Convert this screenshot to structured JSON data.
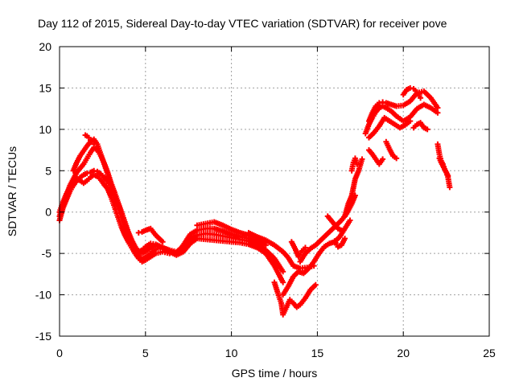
{
  "chart_data": {
    "type": "scatter",
    "title": "Day 112 of 2015, Sidereal Day-to-day VTEC variation (SDTVAR) for receiver pove",
    "xlabel": "GPS time / hours",
    "ylabel": "SDTVAR / TECUs",
    "xlim": [
      0,
      25
    ],
    "ylim": [
      -15,
      20
    ],
    "xticks": [
      0,
      5,
      10,
      15,
      20,
      25
    ],
    "yticks": [
      -15,
      -10,
      -5,
      0,
      5,
      10,
      15,
      20
    ],
    "grid": true,
    "marker": "plus",
    "color": "#ff0000",
    "series": [
      {
        "x": [
          0.0,
          0.2,
          0.4,
          0.6,
          0.8,
          1.0,
          1.2,
          1.4,
          1.6,
          1.8,
          2.0,
          2.2,
          2.4,
          2.6,
          2.8,
          3.0,
          3.2,
          3.4,
          3.6,
          3.8,
          4.0,
          4.2,
          4.4,
          4.6,
          4.8,
          5.0,
          5.3,
          5.6,
          6.0,
          6.4,
          6.8,
          7.2,
          7.6,
          8.0,
          8.5,
          9.0,
          9.5,
          10.0,
          10.5,
          11.0,
          11.5,
          12.0,
          12.5,
          13.0
        ],
        "y": [
          -1.0,
          0.5,
          1.5,
          2.5,
          3.2,
          3.8,
          4.2,
          4.5,
          4.7,
          4.8,
          5.0,
          4.9,
          4.6,
          4.2,
          3.7,
          3.0,
          2.0,
          1.0,
          0.0,
          -1.2,
          -2.4,
          -3.4,
          -4.2,
          -4.8,
          -5.0,
          -4.8,
          -4.3,
          -4.0,
          -4.3,
          -4.8,
          -5.2,
          -4.8,
          -3.8,
          -3.2,
          -3.3,
          -3.4,
          -3.5,
          -3.6,
          -3.7,
          -3.9,
          -4.3,
          -5.0,
          -6.5,
          -8.5
        ]
      },
      {
        "x": [
          0.0,
          0.2,
          0.4,
          0.6,
          0.8,
          1.0,
          1.2,
          1.4,
          1.6,
          1.8,
          2.0,
          2.2,
          2.4,
          2.6,
          2.8,
          3.0,
          3.2,
          3.4,
          3.6,
          3.8,
          4.0,
          4.2,
          4.4,
          4.6,
          4.8,
          5.0,
          5.3,
          5.6,
          6.0,
          6.4,
          6.8,
          7.2,
          7.6,
          8.0,
          8.5,
          9.0,
          9.5,
          10.0,
          10.5,
          11.0,
          11.5,
          12.0,
          12.5,
          13.0
        ],
        "y": [
          -0.5,
          0.8,
          2.0,
          3.2,
          4.0,
          4.8,
          5.3,
          5.8,
          6.5,
          7.2,
          7.8,
          7.5,
          6.8,
          5.9,
          4.8,
          3.5,
          2.4,
          1.2,
          0.0,
          -1.4,
          -2.6,
          -3.5,
          -4.3,
          -4.8,
          -4.6,
          -4.2,
          -3.8,
          -3.9,
          -4.3,
          -4.6,
          -4.8,
          -4.2,
          -3.3,
          -2.8,
          -2.6,
          -2.7,
          -2.9,
          -3.1,
          -3.3,
          -3.5,
          -3.9,
          -4.6,
          -5.6,
          -7.2
        ]
      },
      {
        "x": [
          0.0,
          0.2,
          0.4,
          0.6,
          0.8,
          1.0,
          1.2,
          1.4,
          1.6,
          1.8,
          2.0,
          2.2,
          2.4,
          2.6,
          2.8,
          3.0,
          3.2,
          3.4,
          3.6,
          3.8,
          4.0,
          4.2,
          4.4,
          4.6,
          4.8,
          5.0,
          5.3,
          5.6,
          6.0,
          6.4,
          6.8,
          7.2,
          7.6,
          8.0,
          8.5,
          9.0,
          9.5,
          10.0,
          10.5,
          11.0,
          11.5,
          12.0
        ],
        "y": [
          0.0,
          1.2,
          2.2,
          3.0,
          3.6,
          4.0,
          3.8,
          3.5,
          3.8,
          4.2,
          4.5,
          4.3,
          3.9,
          3.3,
          2.8,
          1.8,
          0.6,
          -0.6,
          -1.8,
          -2.8,
          -3.6,
          -4.3,
          -5.0,
          -5.4,
          -5.7,
          -5.5,
          -5.0,
          -4.5,
          -4.3,
          -4.7,
          -5.0,
          -4.0,
          -2.7,
          -2.2,
          -2.0,
          -2.0,
          -2.3,
          -2.7,
          -3.0,
          -3.2,
          -3.5,
          -4.0
        ]
      },
      {
        "x": [
          0.8,
          1.0,
          1.2,
          1.4,
          1.6,
          1.8,
          2.0,
          2.2,
          2.4,
          2.6,
          2.8,
          3.0,
          3.2,
          3.4,
          3.6,
          3.8,
          4.0,
          4.2,
          4.4,
          4.6,
          4.8,
          5.0,
          5.3,
          5.6,
          6.0,
          6.4
        ],
        "y": [
          5.0,
          6.0,
          6.8,
          7.4,
          8.0,
          8.5,
          8.8,
          8.2,
          7.0,
          5.8,
          4.6,
          3.2,
          2.0,
          0.8,
          -0.6,
          -1.8,
          -3.0,
          -4.0,
          -5.0,
          -5.6,
          -6.0,
          -5.8,
          -5.4,
          -5.0,
          -4.8,
          -5.0
        ]
      },
      {
        "x": [
          1.5,
          1.6,
          1.7,
          1.8,
          1.9,
          2.0
        ],
        "y": [
          9.3,
          9.2,
          9.0,
          8.7,
          8.5,
          8.2
        ]
      },
      {
        "x": [
          4.6,
          4.8,
          5.0,
          5.3,
          5.6,
          6.0
        ],
        "y": [
          -2.5,
          -2.4,
          -2.2,
          -2.0,
          -2.8,
          -3.6
        ]
      },
      {
        "x": [
          8.0,
          8.5,
          9.0,
          9.5,
          10.0,
          10.5,
          11.0,
          11.5,
          12.0
        ],
        "y": [
          -1.6,
          -1.4,
          -1.2,
          -1.6,
          -2.1,
          -2.5,
          -2.8,
          -3.1,
          -3.6
        ]
      },
      {
        "x": [
          11.0,
          11.5,
          12.0,
          12.5,
          13.0,
          13.3,
          13.6,
          14.0,
          14.4,
          14.8
        ],
        "y": [
          -2.5,
          -3.0,
          -3.4,
          -4.0,
          -4.8,
          -5.5,
          -6.5,
          -6.8,
          -6.7,
          -6.5
        ]
      },
      {
        "x": [
          12.5,
          12.7,
          12.9,
          13.0,
          13.2,
          13.4,
          13.6,
          13.8,
          14.0,
          14.3,
          14.6,
          14.9
        ],
        "y": [
          -8.5,
          -9.8,
          -11.0,
          -12.4,
          -11.5,
          -10.6,
          -11.0,
          -11.5,
          -11.2,
          -10.4,
          -9.4,
          -8.8
        ]
      },
      {
        "x": [
          13.0,
          13.3,
          13.6,
          13.9,
          14.2,
          14.5,
          14.8,
          15.1,
          15.4,
          15.7,
          16.0,
          16.3,
          16.6,
          16.9
        ],
        "y": [
          -10.0,
          -9.0,
          -7.8,
          -7.2,
          -7.4,
          -6.8,
          -6.0,
          -5.0,
          -4.2,
          -3.8,
          -3.6,
          -3.0,
          -2.0,
          -1.0
        ]
      },
      {
        "x": [
          13.5,
          13.7,
          13.9,
          14.1,
          14.3
        ],
        "y": [
          -3.6,
          -4.4,
          -5.4,
          -4.7,
          -4.3
        ]
      },
      {
        "x": [
          14.0,
          14.3,
          14.6,
          14.9,
          15.2,
          15.5,
          15.8,
          16.1,
          16.4,
          16.7,
          17.0,
          17.2
        ],
        "y": [
          -6.0,
          -5.0,
          -4.4,
          -4.0,
          -3.4,
          -2.8,
          -2.2,
          -1.6,
          -1.0,
          -0.2,
          1.0,
          2.0
        ]
      },
      {
        "x": [
          15.6,
          15.8,
          16.0,
          16.2,
          16.4
        ],
        "y": [
          -0.5,
          -1.0,
          -1.5,
          -2.0,
          -2.2
        ]
      },
      {
        "x": [
          16.0,
          16.2,
          16.4,
          16.6
        ],
        "y": [
          -3.5,
          -4.2,
          -4.0,
          -3.2
        ]
      },
      {
        "x": [
          16.6,
          16.8,
          17.0,
          17.2,
          17.4,
          17.6
        ],
        "y": [
          -0.5,
          1.0,
          2.0,
          4.0,
          5.0,
          6.4
        ]
      },
      {
        "x": [
          17.0,
          17.1,
          17.2,
          17.3
        ],
        "y": [
          5.0,
          6.0,
          6.5,
          5.8
        ]
      },
      {
        "x": [
          17.8,
          18.0,
          18.2,
          18.4,
          18.6,
          18.8,
          19.0,
          19.3,
          19.6,
          20.0,
          20.4,
          20.8,
          21.2,
          21.6,
          22.0
        ],
        "y": [
          9.5,
          10.6,
          11.4,
          12.1,
          12.6,
          12.8,
          12.6,
          12.2,
          11.6,
          11.0,
          11.5,
          12.5,
          13.0,
          12.6,
          12.0
        ]
      },
      {
        "x": [
          18.0,
          18.2,
          18.4,
          18.6,
          18.8,
          19.0,
          19.3,
          19.6,
          20.0,
          20.4,
          20.8,
          21.2,
          21.6,
          22.0
        ],
        "y": [
          11.0,
          12.0,
          12.8,
          13.2,
          13.3,
          13.2,
          13.0,
          12.8,
          12.9,
          13.4,
          14.4,
          14.6,
          13.8,
          12.6
        ]
      },
      {
        "x": [
          18.0,
          18.3,
          18.6,
          18.9,
          19.2,
          19.5,
          19.8,
          20.1,
          20.4
        ],
        "y": [
          9.0,
          9.6,
          10.4,
          11.4,
          11.0,
          10.6,
          10.2,
          10.5,
          11.0
        ]
      },
      {
        "x": [
          18.0,
          18.2,
          18.4,
          18.6,
          18.8
        ],
        "y": [
          7.5,
          7.0,
          6.4,
          5.8,
          6.4
        ]
      },
      {
        "x": [
          19.0,
          19.2,
          19.4,
          19.6
        ],
        "y": [
          8.5,
          7.6,
          6.8,
          6.5
        ]
      },
      {
        "x": [
          20.0,
          20.2,
          20.4,
          20.6,
          20.8,
          21.0
        ],
        "y": [
          14.2,
          14.8,
          15.0,
          14.9,
          14.5,
          13.8
        ]
      },
      {
        "x": [
          20.6,
          20.8,
          21.0,
          21.2,
          21.4
        ],
        "y": [
          10.2,
          10.6,
          10.8,
          10.2,
          10.0
        ]
      },
      {
        "x": [
          22.0,
          22.1,
          22.2,
          22.3,
          22.4,
          22.5,
          22.6
        ],
        "y": [
          8.2,
          7.0,
          6.2,
          5.8,
          5.2,
          4.8,
          4.4
        ]
      },
      {
        "x": [
          22.1,
          22.2,
          22.3,
          22.4,
          22.5,
          22.6,
          22.7
        ],
        "y": [
          6.5,
          6.0,
          5.6,
          5.2,
          4.8,
          4.2,
          3.0
        ]
      }
    ]
  }
}
